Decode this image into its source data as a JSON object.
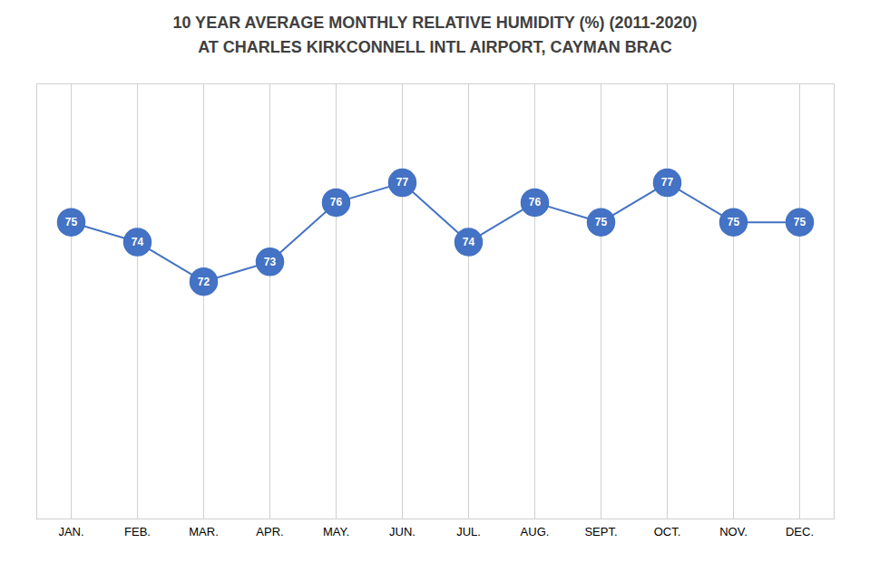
{
  "chart_data": {
    "type": "line",
    "title": "10 YEAR AVERAGE MONTHLY RELATIVE HUMIDITY (%) (2011-2020)\nAT CHARLES KIRKCONNELL INTL AIRPORT, CAYMAN BRAC",
    "categories": [
      "JAN.",
      "FEB.",
      "MAR.",
      "APR.",
      "MAY.",
      "JUN.",
      "JUL.",
      "AUG.",
      "SEPT.",
      "OCT.",
      "NOV.",
      "DEC."
    ],
    "values": [
      75,
      74,
      72,
      73,
      76,
      77,
      74,
      76,
      75,
      77,
      75,
      75
    ],
    "color": "#4472C4",
    "marker": "o",
    "ylim": [
      60,
      82
    ],
    "grid": "x",
    "tick_labels": "x",
    "data_labels": true
  }
}
